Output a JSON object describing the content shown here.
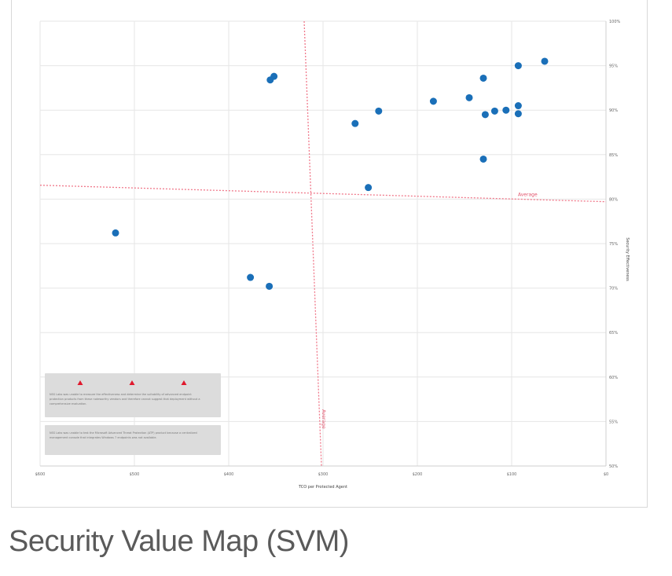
{
  "caption": "Security Value Map (SVM)",
  "chart_data": {
    "type": "scatter",
    "title": "",
    "xlabel": "TCO per Protected Agent",
    "ylabel": "Security Effectiveness",
    "x_tick_labels": [
      "$600",
      "$500",
      "$400",
      "$300",
      "$200",
      "$100",
      "$0"
    ],
    "y_tick_labels": [
      "100%",
      "95%",
      "90%",
      "85%",
      "80%",
      "75%",
      "70%",
      "65%",
      "60%",
      "55%",
      "50%"
    ],
    "xlim": [
      600,
      0
    ],
    "ylim": [
      50,
      100
    ],
    "x_reversed": true,
    "grid": true,
    "colors": {
      "point": "#1a6fb8",
      "average": "#f0788a",
      "grid": "#e6e6e6"
    },
    "average_x_label": "Average",
    "average_y_label": "Average",
    "average_lines": {
      "x": 300,
      "y": 81.3
    },
    "points": [
      {
        "x": 352,
        "y": 93.8
      },
      {
        "x": 356,
        "y": 93.4
      },
      {
        "x": 266,
        "y": 88.5
      },
      {
        "x": 241,
        "y": 89.9
      },
      {
        "x": 183,
        "y": 91.0
      },
      {
        "x": 145,
        "y": 91.4
      },
      {
        "x": 130,
        "y": 93.6
      },
      {
        "x": 128,
        "y": 89.5
      },
      {
        "x": 118,
        "y": 89.9
      },
      {
        "x": 106,
        "y": 90.0
      },
      {
        "x": 93,
        "y": 90.5
      },
      {
        "x": 93,
        "y": 89.6
      },
      {
        "x": 93,
        "y": 95.0
      },
      {
        "x": 65,
        "y": 95.5
      },
      {
        "x": 130,
        "y": 84.5
      },
      {
        "x": 252,
        "y": 81.3
      },
      {
        "x": 520,
        "y": 76.2
      },
      {
        "x": 377,
        "y": 71.2
      },
      {
        "x": 357,
        "y": 70.2
      }
    ],
    "legend": {
      "markers": 3,
      "note_1": "NSS Labs was unable to measure the effectiveness and determine the suitability of advanced endpoint protection products from these noteworthy vendors and therefore cannot suggest that deployment without a comprehensive evaluation.",
      "note_2": "NSS Labs was unable to test the Microsoft Advanced Threat Protection (ATP) product because a centralized management console that integrates Windows 7 endpoints was not available."
    }
  }
}
